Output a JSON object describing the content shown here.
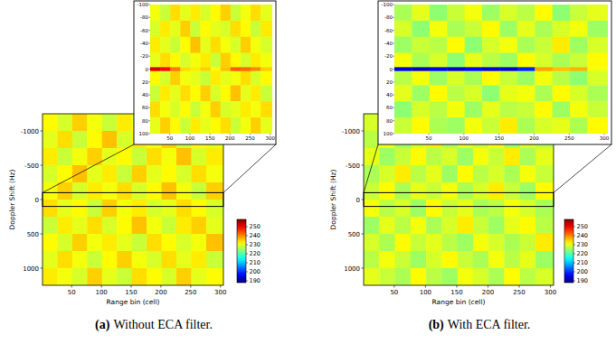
{
  "chart_data": [
    {
      "type": "heatmap",
      "panel_label": "(a)",
      "caption": "Without ECA filter.",
      "x_label": "Range bin (cell)",
      "y_label": "Doppler Shift (Hz)",
      "xlim": [
        1,
        305
      ],
      "ylim": [
        -1250,
        1250
      ],
      "xticks": [
        50,
        100,
        150,
        200,
        250,
        300
      ],
      "yticks": [
        -1000,
        -500,
        0,
        500,
        1000
      ],
      "col_edges": [
        1,
        26,
        51,
        76,
        101,
        126,
        151,
        176,
        201,
        226,
        251,
        276,
        305
      ],
      "row_edges": [
        -1250,
        -1000,
        -750,
        -500,
        -250,
        0,
        250,
        500,
        750,
        1000,
        1250
      ],
      "cells": [
        [
          232,
          229,
          235,
          231,
          228,
          233,
          230,
          236,
          229,
          232,
          231,
          234
        ],
        [
          230,
          234,
          228,
          232,
          236,
          229,
          233,
          231,
          235,
          228,
          232,
          230
        ],
        [
          233,
          228,
          231,
          235,
          230,
          232,
          228,
          234,
          231,
          236,
          229,
          233
        ],
        [
          229,
          232,
          236,
          230,
          233,
          228,
          235,
          230,
          232,
          229,
          234,
          231
        ],
        [
          231,
          235,
          229,
          233,
          231,
          234,
          229,
          232,
          236,
          231,
          228,
          235
        ],
        [
          234,
          230,
          232,
          228,
          235,
          231,
          233,
          229,
          230,
          234,
          232,
          229
        ],
        [
          228,
          233,
          230,
          234,
          229,
          232,
          236,
          231,
          228,
          233,
          235,
          230
        ],
        [
          232,
          229,
          235,
          231,
          233,
          230,
          228,
          234,
          232,
          229,
          231,
          236
        ],
        [
          230,
          234,
          231,
          228,
          232,
          235,
          231,
          229,
          234,
          230,
          233,
          228
        ],
        [
          233,
          231,
          229,
          235,
          230,
          228,
          234,
          232,
          229,
          235,
          230,
          232
        ]
      ],
      "colorbar": {
        "range": [
          188,
          258
        ],
        "ticks": [
          190,
          200,
          210,
          220,
          230,
          240,
          250
        ]
      },
      "inset": {
        "xlim": [
          1,
          305
        ],
        "ylim": [
          -100,
          100
        ],
        "xticks": [
          50,
          100,
          150,
          200,
          250,
          300
        ],
        "yticks": [
          -100,
          -80,
          -60,
          -40,
          -20,
          0,
          20,
          40,
          60,
          80,
          100
        ],
        "col_edges": [
          1,
          26,
          51,
          76,
          101,
          126,
          151,
          176,
          201,
          226,
          251,
          276,
          305
        ],
        "row_edges": [
          -100,
          -75,
          -50,
          -25,
          -3,
          3,
          25,
          50,
          75,
          100
        ],
        "cells": [
          [
            231,
            228,
            234,
            230,
            233,
            229,
            232,
            235,
            228,
            231,
            234,
            230
          ],
          [
            229,
            233,
            230,
            235,
            228,
            232,
            230,
            229,
            234,
            232,
            228,
            233
          ],
          [
            233,
            230,
            228,
            232,
            236,
            230,
            234,
            231,
            229,
            235,
            231,
            229
          ],
          [
            230,
            234,
            232,
            229,
            231,
            233,
            228,
            235,
            232,
            229,
            233,
            231
          ],
          [
            252,
            249,
            241,
            234,
            233,
            235,
            232,
            236,
            243,
            242,
            240,
            235
          ],
          [
            232,
            229,
            235,
            231,
            230,
            228,
            233,
            230,
            231,
            234,
            229,
            232
          ],
          [
            228,
            233,
            230,
            234,
            232,
            235,
            229,
            232,
            236,
            230,
            233,
            228
          ],
          [
            234,
            231,
            229,
            232,
            228,
            231,
            235,
            229,
            230,
            233,
            231,
            234
          ],
          [
            230,
            235,
            232,
            228,
            233,
            230,
            232,
            234,
            228,
            231,
            235,
            230
          ]
        ]
      }
    },
    {
      "type": "heatmap",
      "panel_label": "(b)",
      "caption": "With ECA filter.",
      "x_label": "Range bin (cell)",
      "y_label": "Doppler Shift (Hz)",
      "xlim": [
        1,
        305
      ],
      "ylim": [
        -1250,
        1250
      ],
      "xticks": [
        50,
        100,
        150,
        200,
        250,
        300
      ],
      "yticks": [
        -1000,
        -500,
        0,
        500,
        1000
      ],
      "col_edges": [
        1,
        26,
        51,
        76,
        101,
        126,
        151,
        176,
        201,
        226,
        251,
        276,
        305
      ],
      "row_edges": [
        -1250,
        -1000,
        -750,
        -500,
        -250,
        0,
        250,
        500,
        750,
        1000,
        1250
      ],
      "cells": [
        [
          229,
          226,
          232,
          228,
          225,
          230,
          227,
          233,
          226,
          229,
          228,
          231
        ],
        [
          227,
          231,
          225,
          229,
          233,
          226,
          230,
          228,
          232,
          225,
          229,
          227
        ],
        [
          230,
          225,
          228,
          232,
          227,
          229,
          225,
          231,
          228,
          233,
          226,
          230
        ],
        [
          226,
          229,
          233,
          227,
          230,
          225,
          232,
          227,
          229,
          226,
          231,
          228
        ],
        [
          228,
          232,
          226,
          230,
          228,
          231,
          226,
          229,
          233,
          228,
          225,
          232
        ],
        [
          231,
          227,
          229,
          225,
          232,
          228,
          230,
          226,
          227,
          231,
          229,
          226
        ],
        [
          225,
          230,
          227,
          231,
          226,
          229,
          233,
          228,
          225,
          230,
          232,
          227
        ],
        [
          229,
          226,
          232,
          228,
          230,
          227,
          225,
          231,
          229,
          226,
          228,
          233
        ],
        [
          227,
          231,
          228,
          225,
          229,
          232,
          228,
          226,
          231,
          227,
          230,
          225
        ],
        [
          230,
          228,
          226,
          232,
          227,
          225,
          231,
          229,
          226,
          232,
          227,
          229
        ]
      ],
      "colorbar": {
        "range": [
          188,
          258
        ],
        "ticks": [
          190,
          200,
          210,
          220,
          230,
          240,
          250
        ]
      },
      "inset": {
        "xlim": [
          1,
          305
        ],
        "ylim": [
          -100,
          100
        ],
        "xticks": [
          50,
          100,
          150,
          200,
          250,
          300
        ],
        "yticks": [
          -100,
          -80,
          -60,
          -40,
          -20,
          0,
          20,
          40,
          60,
          80,
          100
        ],
        "col_edges": [
          1,
          26,
          51,
          76,
          101,
          126,
          151,
          176,
          201,
          226,
          251,
          276,
          305
        ],
        "row_edges": [
          -100,
          -75,
          -50,
          -25,
          -3,
          3,
          25,
          50,
          75,
          100
        ],
        "cells": [
          [
            226,
            230,
            224,
            228,
            231,
            225,
            229,
            227,
            232,
            224,
            228,
            230
          ],
          [
            229,
            224,
            231,
            226,
            228,
            232,
            225,
            230,
            226,
            229,
            231,
            225
          ],
          [
            225,
            228,
            227,
            232,
            224,
            229,
            231,
            226,
            228,
            233,
            225,
            229
          ],
          [
            231,
            226,
            229,
            224,
            230,
            227,
            225,
            232,
            229,
            226,
            228,
            232
          ],
          [
            195,
            193,
            196,
            194,
            197,
            195,
            194,
            199,
            238,
            236,
            237,
            231
          ],
          [
            227,
            231,
            225,
            229,
            226,
            232,
            228,
            225,
            231,
            227,
            224,
            229
          ],
          [
            230,
            225,
            232,
            227,
            229,
            224,
            230,
            231,
            226,
            232,
            229,
            226
          ],
          [
            224,
            229,
            227,
            231,
            225,
            230,
            227,
            228,
            232,
            225,
            231,
            228
          ],
          [
            228,
            232,
            226,
            225,
            231,
            228,
            233,
            226,
            229,
            230,
            226,
            232
          ]
        ]
      }
    }
  ]
}
